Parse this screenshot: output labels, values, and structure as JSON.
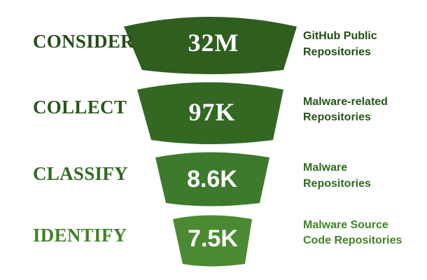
{
  "stages": [
    {
      "label": "CONSIDER",
      "value": "32M",
      "desc_line1": "GitHub Public",
      "desc_line2": "Repositories",
      "color": "#2f5e1f",
      "label_color": "#244d17"
    },
    {
      "label": "COLLECT",
      "value": "97K",
      "desc_line1": "Malware-related",
      "desc_line2": "Repositories",
      "color": "#336822",
      "label_color": "#28551a"
    },
    {
      "label": "CLASSIFY",
      "value": "8.6K",
      "desc_line1": "Malware",
      "desc_line2": "Repositories",
      "color": "#3d7a2b",
      "label_color": "#2f6a20"
    },
    {
      "label": "IDENTIFY",
      "value": "7.5K",
      "desc_line1": "Malware Source",
      "desc_line2": "Code Repositories",
      "color": "#4b8a32",
      "label_color": "#3f8327"
    }
  ]
}
